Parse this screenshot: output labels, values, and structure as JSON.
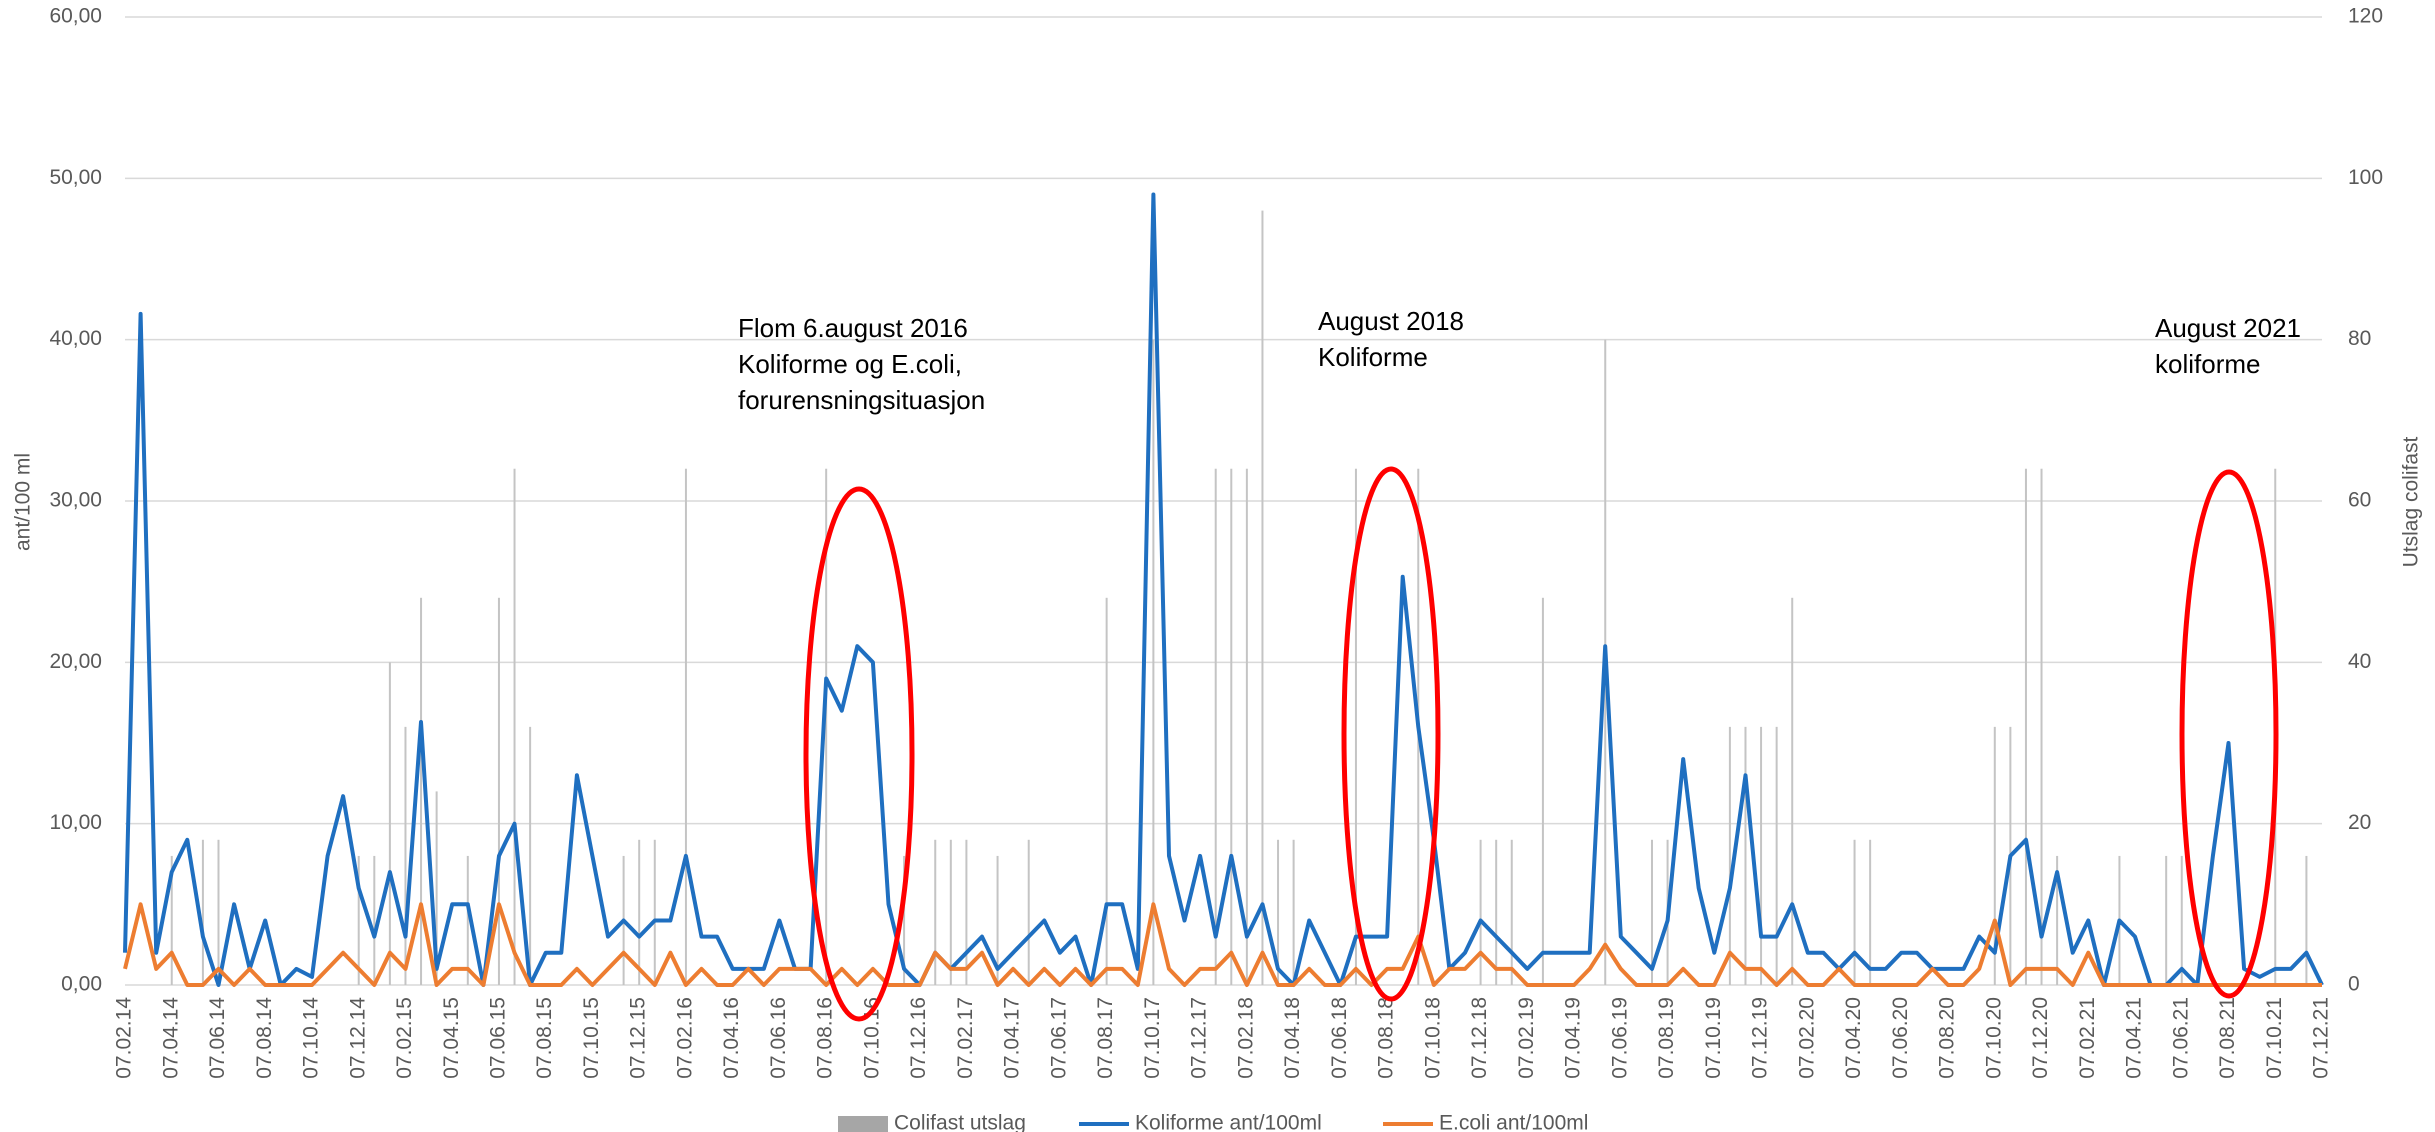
{
  "chart_data": {
    "type": "line",
    "ylabel": "ant/100 ml",
    "y2label": "Utslag colifast",
    "ylim": [
      0,
      60
    ],
    "yticks": [
      {
        "value": 0,
        "label": "0,00"
      },
      {
        "value": 10,
        "label": "10,00"
      },
      {
        "value": 20,
        "label": "20,00"
      },
      {
        "value": 30,
        "label": "30,00"
      },
      {
        "value": 40,
        "label": "40,00"
      },
      {
        "value": 50,
        "label": "50,00"
      },
      {
        "value": 60,
        "label": "60,00"
      }
    ],
    "y2lim": [
      0,
      120
    ],
    "y2ticks": [
      0,
      20,
      40,
      60,
      80,
      100,
      120
    ],
    "grid": true,
    "legend": "bottom",
    "annotations": [
      {
        "lines": [
          "Flom 6.august 2016",
          "Koliforme og E.coli,",
          "forurensningsituasjon"
        ]
      },
      {
        "lines": [
          "August 2018",
          "Koliforme"
        ]
      },
      {
        "lines": [
          "August 2021",
          "koliforme"
        ]
      }
    ],
    "categories": [
      "07.02.14",
      null,
      null,
      "07.04.14",
      null,
      null,
      "07.06.14",
      null,
      null,
      "07.08.14",
      null,
      null,
      "07.10.14",
      null,
      null,
      "07.12.14",
      null,
      null,
      "07.02.15",
      null,
      null,
      "07.04.15",
      null,
      null,
      "07.06.15",
      null,
      null,
      "07.08.15",
      null,
      null,
      "07.10.15",
      null,
      null,
      "07.12.15",
      null,
      null,
      "07.02.16",
      null,
      null,
      "07.04.16",
      null,
      null,
      "07.06.16",
      null,
      null,
      "07.08.16",
      null,
      null,
      "07.10.16",
      null,
      null,
      "07.12.16",
      null,
      null,
      "07.02.17",
      null,
      null,
      "07.04.17",
      null,
      null,
      "07.06.17",
      null,
      null,
      "07.08.17",
      null,
      null,
      "07.10.17",
      null,
      null,
      "07.12.17",
      null,
      null,
      "07.02.18",
      null,
      null,
      "07.04.18",
      null,
      null,
      "07.06.18",
      null,
      null,
      "07.08.18",
      null,
      null,
      "07.10.18",
      null,
      null,
      "07.12.18",
      null,
      null,
      "07.02.19",
      null,
      null,
      "07.04.19",
      null,
      null,
      "07.06.19",
      null,
      null,
      "07.08.19",
      null,
      null,
      "07.10.19",
      null,
      null,
      "07.12.19",
      null,
      null,
      "07.02.20",
      null,
      null,
      "07.04.20",
      null,
      null,
      "07.06.20",
      null,
      null,
      "07.08.20",
      null,
      null,
      "07.10.20",
      null,
      null,
      "07.12.20",
      null,
      null,
      "07.02.21",
      null,
      null,
      "07.04.21",
      null,
      null,
      "07.06.21",
      null,
      null,
      "07.08.21",
      null,
      null,
      "07.10.21",
      null,
      null,
      "07.12.21"
    ],
    "series": [
      {
        "name": "Colifast utslag",
        "type": "bar",
        "axis": "y2",
        "color": "#c4c4c4",
        "values": [
          0,
          0,
          0,
          16,
          0,
          18,
          18,
          0,
          0,
          0,
          0,
          0,
          0,
          0,
          0,
          16,
          16,
          40,
          32,
          48,
          24,
          0,
          16,
          0,
          48,
          64,
          32,
          0,
          0,
          0,
          0,
          0,
          16,
          18,
          18,
          0,
          64,
          0,
          0,
          0,
          0,
          0,
          0,
          0,
          0,
          64,
          0,
          0,
          0,
          0,
          16,
          0,
          18,
          18,
          18,
          0,
          16,
          0,
          18,
          0,
          0,
          0,
          0,
          48,
          0,
          0,
          80,
          0,
          0,
          0,
          64,
          64,
          64,
          96,
          18,
          18,
          0,
          0,
          0,
          64,
          0,
          0,
          0,
          64,
          0,
          0,
          0,
          18,
          18,
          18,
          0,
          48,
          0,
          0,
          0,
          80,
          0,
          0,
          18,
          18,
          0,
          0,
          0,
          32,
          32,
          32,
          32,
          48,
          0,
          0,
          0,
          18,
          18,
          0,
          0,
          0,
          0,
          0,
          0,
          0,
          32,
          32,
          64,
          64,
          16,
          0,
          0,
          0,
          16,
          0,
          0,
          16,
          16,
          0,
          0,
          0,
          0,
          0,
          64,
          0,
          16,
          0
        ]
      },
      {
        "name": "Koliforme ant/100ml",
        "type": "line",
        "color": "#1f6fc0",
        "values": [
          2,
          41.6,
          2,
          7,
          9,
          3,
          0,
          5,
          1,
          4,
          0,
          1,
          0.5,
          8,
          11.7,
          6,
          3,
          7,
          3,
          16.3,
          1,
          5,
          5,
          0,
          8,
          10,
          0,
          2,
          2,
          13,
          8,
          3,
          4,
          3,
          4,
          4,
          8,
          3,
          3,
          1,
          1,
          1,
          4,
          1,
          1,
          19,
          17,
          21,
          20,
          5,
          1,
          0,
          2,
          1,
          2,
          3,
          1,
          2,
          3,
          4,
          2,
          3,
          0,
          5,
          5,
          1,
          49,
          8,
          4,
          8,
          3,
          8,
          3,
          5,
          1,
          0,
          4,
          2,
          0,
          3,
          3,
          3,
          25.3,
          16,
          9,
          1,
          2,
          4,
          3,
          2,
          1,
          2,
          2,
          2,
          2,
          21,
          3,
          2,
          1,
          4,
          14,
          6,
          2,
          6,
          13,
          3,
          3,
          5,
          2,
          2,
          1,
          2,
          1,
          1,
          2,
          2,
          1,
          1,
          1,
          3,
          2,
          8,
          9,
          3,
          7,
          2,
          4,
          0,
          4,
          3,
          0,
          0,
          1,
          0,
          8,
          15,
          1,
          0.5,
          1,
          1,
          2,
          0
        ]
      },
      {
        "name": "E.coli ant/100ml",
        "type": "line",
        "color": "#ed7d31",
        "values": [
          1,
          5,
          1,
          2,
          0,
          0,
          1,
          0,
          1,
          0,
          0,
          0,
          0,
          1,
          2,
          1,
          0,
          2,
          1,
          5,
          0,
          1,
          1,
          0,
          5,
          2,
          0,
          0,
          0,
          1,
          0,
          1,
          2,
          1,
          0,
          2,
          0,
          1,
          0,
          0,
          1,
          0,
          1,
          1,
          1,
          0,
          1,
          0,
          1,
          0,
          0,
          0,
          2,
          1,
          1,
          2,
          0,
          1,
          0,
          1,
          0,
          1,
          0,
          1,
          1,
          0,
          5,
          1,
          0,
          1,
          1,
          2,
          0,
          2,
          0,
          0,
          1,
          0,
          0,
          1,
          0,
          1,
          1,
          3,
          0,
          1,
          1,
          2,
          1,
          1,
          0,
          0,
          0,
          0,
          1,
          2.5,
          1,
          0,
          0,
          0,
          1,
          0,
          0,
          2,
          1,
          1,
          0,
          1,
          0,
          0,
          1,
          0,
          0,
          0,
          0,
          0,
          1,
          0,
          0,
          1,
          4,
          0,
          1,
          1,
          1,
          0,
          2,
          0,
          0,
          0,
          0,
          0,
          0,
          0,
          0,
          0,
          0,
          0,
          0,
          0,
          0,
          0
        ]
      }
    ]
  }
}
